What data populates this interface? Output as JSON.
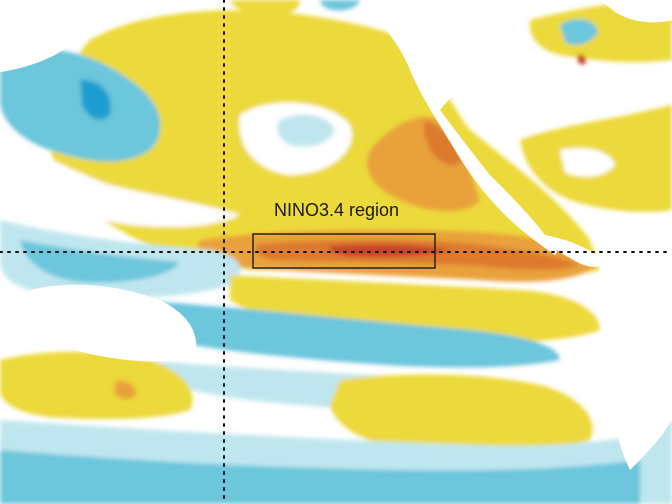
{
  "map": {
    "region_label": "NINO3.4 region",
    "reference_lines": [
      "equator",
      "dateline"
    ],
    "palette": {
      "land": "#ffffff",
      "light_blue": "#bfe6ee",
      "blue": "#6cc6dc",
      "deep_blue": "#1f9fd0",
      "pale_yellow": "#f3ef9a",
      "yellow": "#ecd93a",
      "orange": "#e9a23a",
      "dark_orange": "#dd7a2e",
      "red": "#c9452a",
      "box_stroke": "#222222"
    }
  }
}
